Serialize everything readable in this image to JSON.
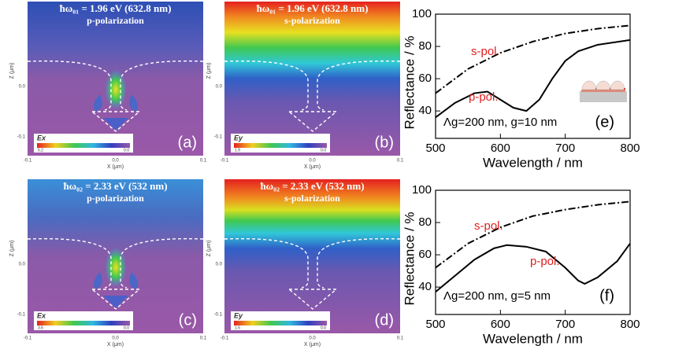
{
  "figure": {
    "field_maps": [
      {
        "title": "ħω₀₁ = 1.96 eV (632.8 nm)",
        "polarization": "p-polarization",
        "colorbar_label": "Ex",
        "colorbar_max": "5.2",
        "colorbar_min": "0.0",
        "panel_label": "(a)",
        "xlabel": "X (μm)",
        "ylabel": "Z (μm)",
        "xticks": [
          "-0.1",
          "0.0",
          "0.1"
        ],
        "yticks": [
          "0.0",
          "-0.1"
        ]
      },
      {
        "title": "ħω₀₁ = 1.96 eV (632.8 nm)",
        "polarization": "s-polarization",
        "colorbar_label": "Ey",
        "colorbar_max": "1.9",
        "colorbar_min": "0.0",
        "panel_label": "(b)",
        "xlabel": "X (μm)",
        "ylabel": "Z (μm)",
        "xticks": [
          "-0.1",
          "0.0",
          "0.1"
        ],
        "yticks": [
          "0.0",
          "-0.1"
        ]
      },
      {
        "title": "ħω₀₂ = 2.33 eV (532 nm)",
        "polarization": "p-polarization",
        "colorbar_label": "Ex",
        "colorbar_max": "3.6",
        "colorbar_min": "0.0",
        "panel_label": "(c)",
        "xlabel": "X (μm)",
        "ylabel": "Z (μm)",
        "xticks": [
          "-0.1",
          "0.0",
          "0.1"
        ],
        "yticks": [
          "0.0",
          "-0.1"
        ]
      },
      {
        "title": "ħω₀₂ = 2.33 eV (532 nm)",
        "polarization": "s-polarization",
        "colorbar_label": "Ey",
        "colorbar_max": "1.6",
        "colorbar_min": "0.0",
        "panel_label": "(d)",
        "xlabel": "X (μm)",
        "ylabel": "Z (μm)",
        "xticks": [
          "-0.1",
          "0.0",
          "0.1"
        ],
        "yticks": [
          "0.0",
          "-0.1"
        ]
      }
    ]
  },
  "chart_data": [
    {
      "type": "line",
      "panel_label": "(e)",
      "annotation": "Λg=200 nm, g=10 nm",
      "xlabel": "Wavelength  /  nm",
      "ylabel": "Reflectance  /  %",
      "xlim": [
        500,
        800
      ],
      "xticks": [
        500,
        600,
        700,
        800
      ],
      "ylim": [
        23,
        100
      ],
      "yticks": [
        40,
        60,
        80,
        100
      ],
      "series": [
        {
          "name": "s-pol.",
          "color": "#000000",
          "dash": "dashdot",
          "x": [
            500,
            550,
            600,
            650,
            700,
            750,
            800
          ],
          "values": [
            51,
            66,
            76,
            83,
            88,
            91,
            93
          ]
        },
        {
          "name": "p-pol.",
          "color": "#000000",
          "dash": "solid",
          "x": [
            500,
            530,
            560,
            580,
            600,
            620,
            640,
            660,
            680,
            700,
            720,
            750,
            800
          ],
          "values": [
            36,
            45,
            51,
            52,
            47,
            42,
            40,
            47,
            60,
            71,
            77,
            81,
            84
          ]
        }
      ]
    },
    {
      "type": "line",
      "panel_label": "(f)",
      "annotation": "Λg=200 nm, g=5 nm",
      "xlabel": "Wavelength  /  nm",
      "ylabel": "Reflectance  /  %",
      "xlim": [
        500,
        800
      ],
      "xticks": [
        500,
        600,
        700,
        800
      ],
      "ylim": [
        23,
        100
      ],
      "yticks": [
        40,
        60,
        80,
        100
      ],
      "series": [
        {
          "name": "s-pol.",
          "color": "#000000",
          "dash": "dashdot",
          "x": [
            500,
            550,
            600,
            650,
            700,
            750,
            800
          ],
          "values": [
            52,
            67,
            77,
            84,
            88,
            91,
            93
          ]
        },
        {
          "name": "p-pol.",
          "color": "#000000",
          "dash": "solid",
          "x": [
            500,
            530,
            560,
            590,
            610,
            640,
            670,
            700,
            720,
            730,
            750,
            780,
            800
          ],
          "values": [
            37,
            47,
            57,
            64,
            66,
            65,
            62,
            52,
            44,
            42,
            46,
            56,
            67
          ]
        }
      ]
    }
  ]
}
